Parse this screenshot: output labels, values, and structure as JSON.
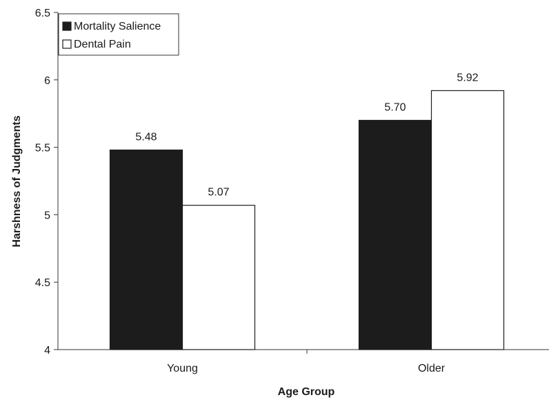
{
  "chart_data": {
    "type": "bar",
    "categories": [
      "Young",
      "Older"
    ],
    "series": [
      {
        "name": "Mortality Salience",
        "values": [
          5.48,
          5.7
        ],
        "labels": [
          "5.48",
          "5.70"
        ],
        "color": "#1c1c1c"
      },
      {
        "name": "Dental Pain",
        "values": [
          5.07,
          5.92
        ],
        "labels": [
          "5.07",
          "5.92"
        ],
        "color": "#ffffff"
      }
    ],
    "xlabel": "Age Group",
    "ylabel": "Harshness of Judgments",
    "ylim": [
      4,
      6.5
    ],
    "yticks": [
      {
        "value": 4,
        "label": "4"
      },
      {
        "value": 4.5,
        "label": "4.5"
      },
      {
        "value": 5,
        "label": "5"
      },
      {
        "value": 5.5,
        "label": "5.5"
      },
      {
        "value": 6,
        "label": "6"
      },
      {
        "value": 6.5,
        "label": "6.5"
      }
    ],
    "grid": false,
    "legend_position": "top-left"
  }
}
